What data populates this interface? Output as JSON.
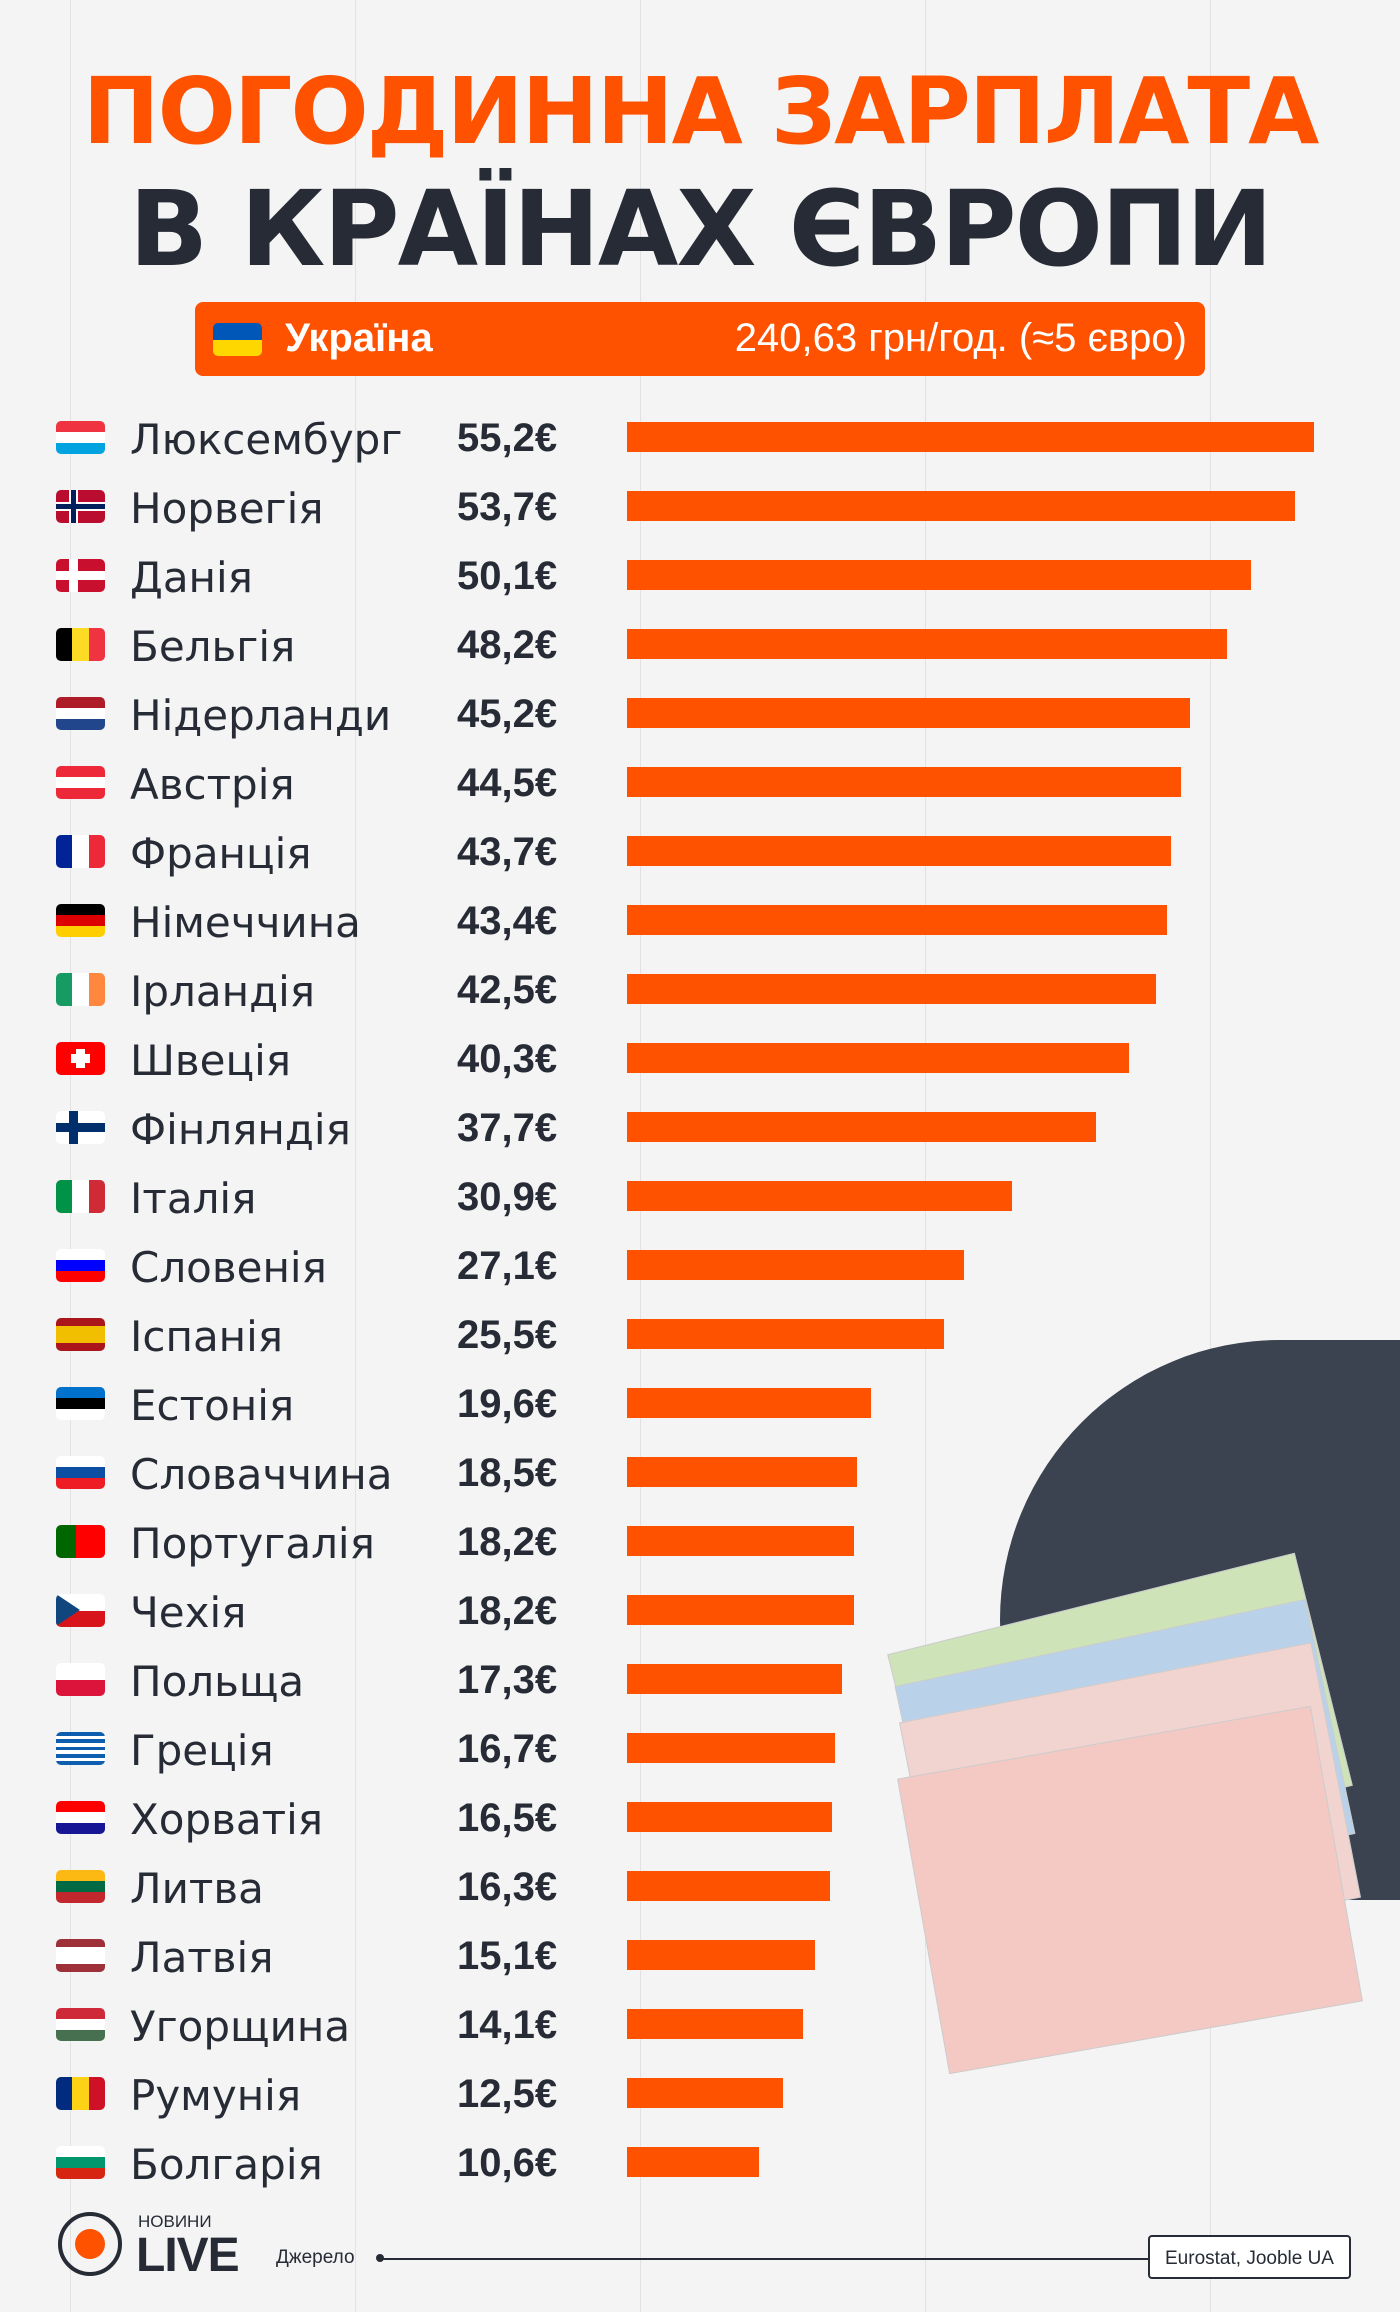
{
  "title": {
    "line1": "ПОГОДИННА ЗАРПЛАТА",
    "line2": "В КРАЇНАХ ЄВРОПИ"
  },
  "banner": {
    "country": "Україна",
    "value": "240,63 грн/год. (≈5 євро)",
    "flag": [
      "#0057b7",
      "#ffd700"
    ]
  },
  "colors": {
    "accent": "#ff5200",
    "text": "#262b35",
    "background": "#f4f4f4"
  },
  "chart_data": {
    "type": "bar",
    "orientation": "horizontal",
    "unit": "€",
    "categories": [
      "Люксембург",
      "Норвегія",
      "Данія",
      "Бельгія",
      "Нідерланди",
      "Австрія",
      "Франція",
      "Німеччина",
      "Ірландія",
      "Швеція",
      "Фінляндія",
      "Італія",
      "Словенія",
      "Іспанія",
      "Естонія",
      "Словаччина",
      "Португалія",
      "Чехія",
      "Польща",
      "Греція",
      "Хорватія",
      "Литва",
      "Латвія",
      "Угорщина",
      "Румунія",
      "Болгарія"
    ],
    "values": [
      55.2,
      53.7,
      50.1,
      48.2,
      45.2,
      44.5,
      43.7,
      43.4,
      42.5,
      40.3,
      37.7,
      30.9,
      27.1,
      25.5,
      19.6,
      18.5,
      18.2,
      18.2,
      17.3,
      16.7,
      16.5,
      16.3,
      15.1,
      14.1,
      12.5,
      10.6
    ],
    "labels": [
      "55,2€",
      "53,7€",
      "50,1€",
      "48,2€",
      "45,2€",
      "44,5€",
      "43,7€",
      "43,4€",
      "42,5€",
      "40,3€",
      "37,7€",
      "30,9€",
      "27,1€",
      "25,5€",
      "19,6€",
      "18,5€",
      "18,2€",
      "18,2€",
      "17,3€",
      "16,7€",
      "16,5€",
      "16,3€",
      "15,1€",
      "14,1€",
      "12,5€",
      "10,6€"
    ],
    "flags": [
      {
        "type": "h",
        "c": [
          "#ef3340",
          "#ffffff",
          "#00a3e0"
        ]
      },
      {
        "type": "nordic",
        "c": [
          "#ba0c2f",
          "#ffffff",
          "#00205b"
        ]
      },
      {
        "type": "nordic",
        "c": [
          "#c8102e",
          "#ffffff",
          "#ffffff"
        ]
      },
      {
        "type": "v",
        "c": [
          "#000000",
          "#fdda24",
          "#ef3340"
        ]
      },
      {
        "type": "h",
        "c": [
          "#ae1c28",
          "#ffffff",
          "#21468b"
        ]
      },
      {
        "type": "h",
        "c": [
          "#ed2939",
          "#ffffff",
          "#ed2939"
        ]
      },
      {
        "type": "v",
        "c": [
          "#002395",
          "#ffffff",
          "#ed2939"
        ]
      },
      {
        "type": "h",
        "c": [
          "#000000",
          "#dd0000",
          "#ffce00"
        ]
      },
      {
        "type": "v",
        "c": [
          "#169b62",
          "#ffffff",
          "#ff883e"
        ]
      },
      {
        "type": "cross",
        "c": [
          "#ff0000",
          "#ffffff"
        ]
      },
      {
        "type": "nordic",
        "c": [
          "#ffffff",
          "#002f6c",
          "#002f6c"
        ]
      },
      {
        "type": "v",
        "c": [
          "#009246",
          "#ffffff",
          "#ce2b37"
        ]
      },
      {
        "type": "h",
        "c": [
          "#ffffff",
          "#0000ff",
          "#ff0000"
        ]
      },
      {
        "type": "h3",
        "c": [
          "#aa151b",
          "#f1bf00",
          "#aa151b"
        ]
      },
      {
        "type": "h",
        "c": [
          "#0072ce",
          "#000000",
          "#ffffff"
        ]
      },
      {
        "type": "h",
        "c": [
          "#ffffff",
          "#0b4ea2",
          "#ee1c25"
        ]
      },
      {
        "type": "v2",
        "c": [
          "#006600",
          "#ff0000"
        ]
      },
      {
        "type": "cz",
        "c": [
          "#ffffff",
          "#d7141a",
          "#11457e"
        ]
      },
      {
        "type": "h2",
        "c": [
          "#ffffff",
          "#dc143c"
        ]
      },
      {
        "type": "stripes",
        "c": [
          "#0d5eaf",
          "#ffffff"
        ]
      },
      {
        "type": "h",
        "c": [
          "#ff0000",
          "#ffffff",
          "#171796"
        ]
      },
      {
        "type": "h",
        "c": [
          "#fdb913",
          "#006a44",
          "#c1272d"
        ]
      },
      {
        "type": "h3",
        "c": [
          "#9e3039",
          "#ffffff",
          "#9e3039"
        ]
      },
      {
        "type": "h",
        "c": [
          "#ce2939",
          "#ffffff",
          "#477050"
        ]
      },
      {
        "type": "v",
        "c": [
          "#002b7f",
          "#fcd116",
          "#ce1126"
        ]
      },
      {
        "type": "h",
        "c": [
          "#ffffff",
          "#00966e",
          "#d62612"
        ]
      }
    ]
  },
  "footer": {
    "logo_small": "НОВИНИ",
    "logo_big": "LIVE",
    "source_label": "Джерело",
    "source": "Eurostat, Jooble UA"
  }
}
